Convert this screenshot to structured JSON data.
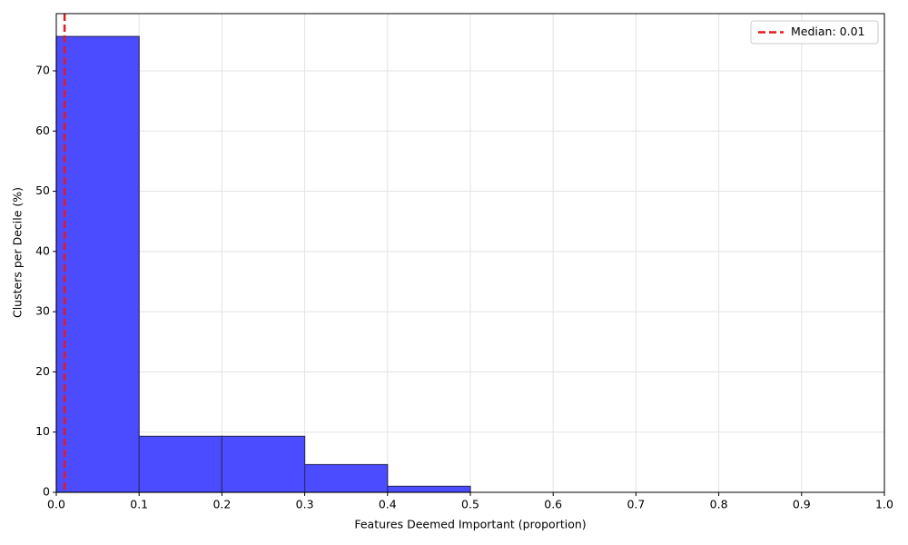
{
  "chart_data": {
    "type": "histogram",
    "xlabel": "Features Deemed Important (proportion)",
    "ylabel": "Clusters per Decile (%)",
    "bins": [
      0,
      0.1,
      0.2,
      0.3,
      0.4,
      0.5,
      0.6,
      0.7,
      0.8,
      0.9,
      1
    ],
    "values": [
      75.7,
      9.3,
      9.3,
      4.6,
      1.0,
      0,
      0,
      0,
      0,
      0
    ],
    "color": "#4b4bff",
    "edgecolor": "#2d2d6e",
    "xlim": [
      0,
      1
    ],
    "xticks": [
      {
        "value": 0,
        "label": "0.0"
      },
      0.1,
      0.2,
      0.3,
      0.4,
      0.5,
      0.6,
      0.7,
      0.8,
      0.9,
      {
        "value": 1,
        "label": "1.0"
      }
    ],
    "ylim": [
      0,
      79.5
    ],
    "yticks": [
      0,
      10,
      20,
      30,
      40,
      50,
      60,
      70
    ],
    "grid": true,
    "median": {
      "label": "Median: 0.01",
      "value": 0.01,
      "color": "#e41a1c"
    },
    "legend": "upper right"
  }
}
